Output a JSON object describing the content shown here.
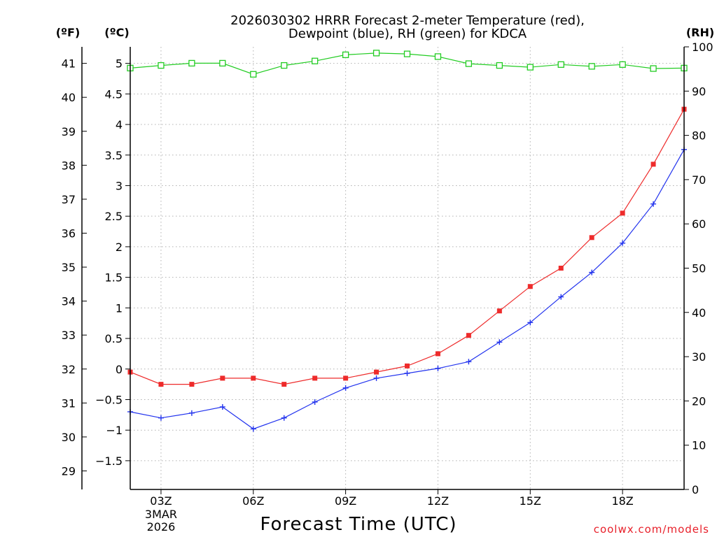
{
  "chart_data": {
    "type": "line",
    "title": [
      "2026030302 HRRR Forecast 2-meter Temperature (red),",
      "Dewpoint (blue), RH (green) for KDCA"
    ],
    "units": {
      "fahrenheit": "(ºF)",
      "celsius": "(ºC)",
      "rh": "(RH)"
    },
    "xlabel": "Forecast Time (UTC)",
    "credit": "coolwx.com/models",
    "x": [
      2,
      3,
      4,
      5,
      6,
      7,
      8,
      9,
      10,
      11,
      12,
      13,
      14,
      15,
      16,
      17,
      18,
      19,
      20
    ],
    "xlim": [
      2,
      20
    ],
    "x_ticks": [
      {
        "x": 3,
        "label": "03Z",
        "sub": [
          "3MAR",
          "2026"
        ]
      },
      {
        "x": 6,
        "label": "06Z",
        "sub": []
      },
      {
        "x": 9,
        "label": "09Z",
        "sub": []
      },
      {
        "x": 12,
        "label": "12Z",
        "sub": []
      },
      {
        "x": 15,
        "label": "15Z",
        "sub": []
      },
      {
        "x": 18,
        "label": "18Z",
        "sub": []
      }
    ],
    "celsius_axis": {
      "ylim": [
        -1.97,
        5.27
      ],
      "ticks": [
        -1.5,
        -1,
        -0.5,
        0,
        0.5,
        1,
        1.5,
        2,
        2.5,
        3,
        3.5,
        4,
        4.5,
        5
      ],
      "tick_labels": [
        "−1.5",
        "−1",
        "−0.5",
        "0",
        "0.5",
        "1",
        "1.5",
        "2",
        "2.5",
        "3",
        "3.5",
        "4",
        "4.5",
        "5"
      ]
    },
    "fahrenheit_axis": {
      "ticks": [
        29,
        30,
        31,
        32,
        33,
        34,
        35,
        36,
        37,
        38,
        39,
        40,
        41
      ],
      "tick_labels": [
        "29",
        "30",
        "31",
        "32",
        "33",
        "34",
        "35",
        "36",
        "37",
        "38",
        "39",
        "40",
        "41"
      ]
    },
    "rh_axis": {
      "ylim": [
        0,
        100
      ],
      "ticks": [
        0,
        10,
        20,
        30,
        40,
        50,
        60,
        70,
        80,
        90,
        100
      ],
      "tick_labels": [
        "0",
        "10",
        "20",
        "30",
        "40",
        "50",
        "60",
        "70",
        "80",
        "90",
        "100"
      ]
    },
    "grid": true,
    "series": [
      {
        "name": "Temperature",
        "axis": "celsius",
        "color": "#ee2b2b",
        "marker": "filled-square",
        "values": [
          -0.05,
          -0.25,
          -0.25,
          -0.15,
          -0.15,
          -0.25,
          -0.15,
          -0.15,
          -0.05,
          0.05,
          0.25,
          0.55,
          0.95,
          1.35,
          1.65,
          2.15,
          2.55,
          3.35,
          4.25
        ]
      },
      {
        "name": "Dewpoint",
        "axis": "celsius",
        "color": "#2233ee",
        "marker": "plus",
        "values": [
          -0.7,
          -0.8,
          -0.72,
          -0.62,
          -0.98,
          -0.8,
          -0.54,
          -0.31,
          -0.15,
          -0.07,
          0.01,
          0.12,
          0.44,
          0.76,
          1.18,
          1.58,
          2.06,
          2.7,
          3.59
        ]
      },
      {
        "name": "RH",
        "axis": "rh",
        "color": "#22cc22",
        "marker": "open-square",
        "values": [
          95.2,
          95.8,
          96.3,
          96.3,
          93.8,
          95.8,
          96.8,
          98.2,
          98.6,
          98.4,
          97.8,
          96.2,
          95.8,
          95.4,
          96.0,
          95.6,
          96.0,
          95.1,
          95.2
        ]
      }
    ]
  }
}
